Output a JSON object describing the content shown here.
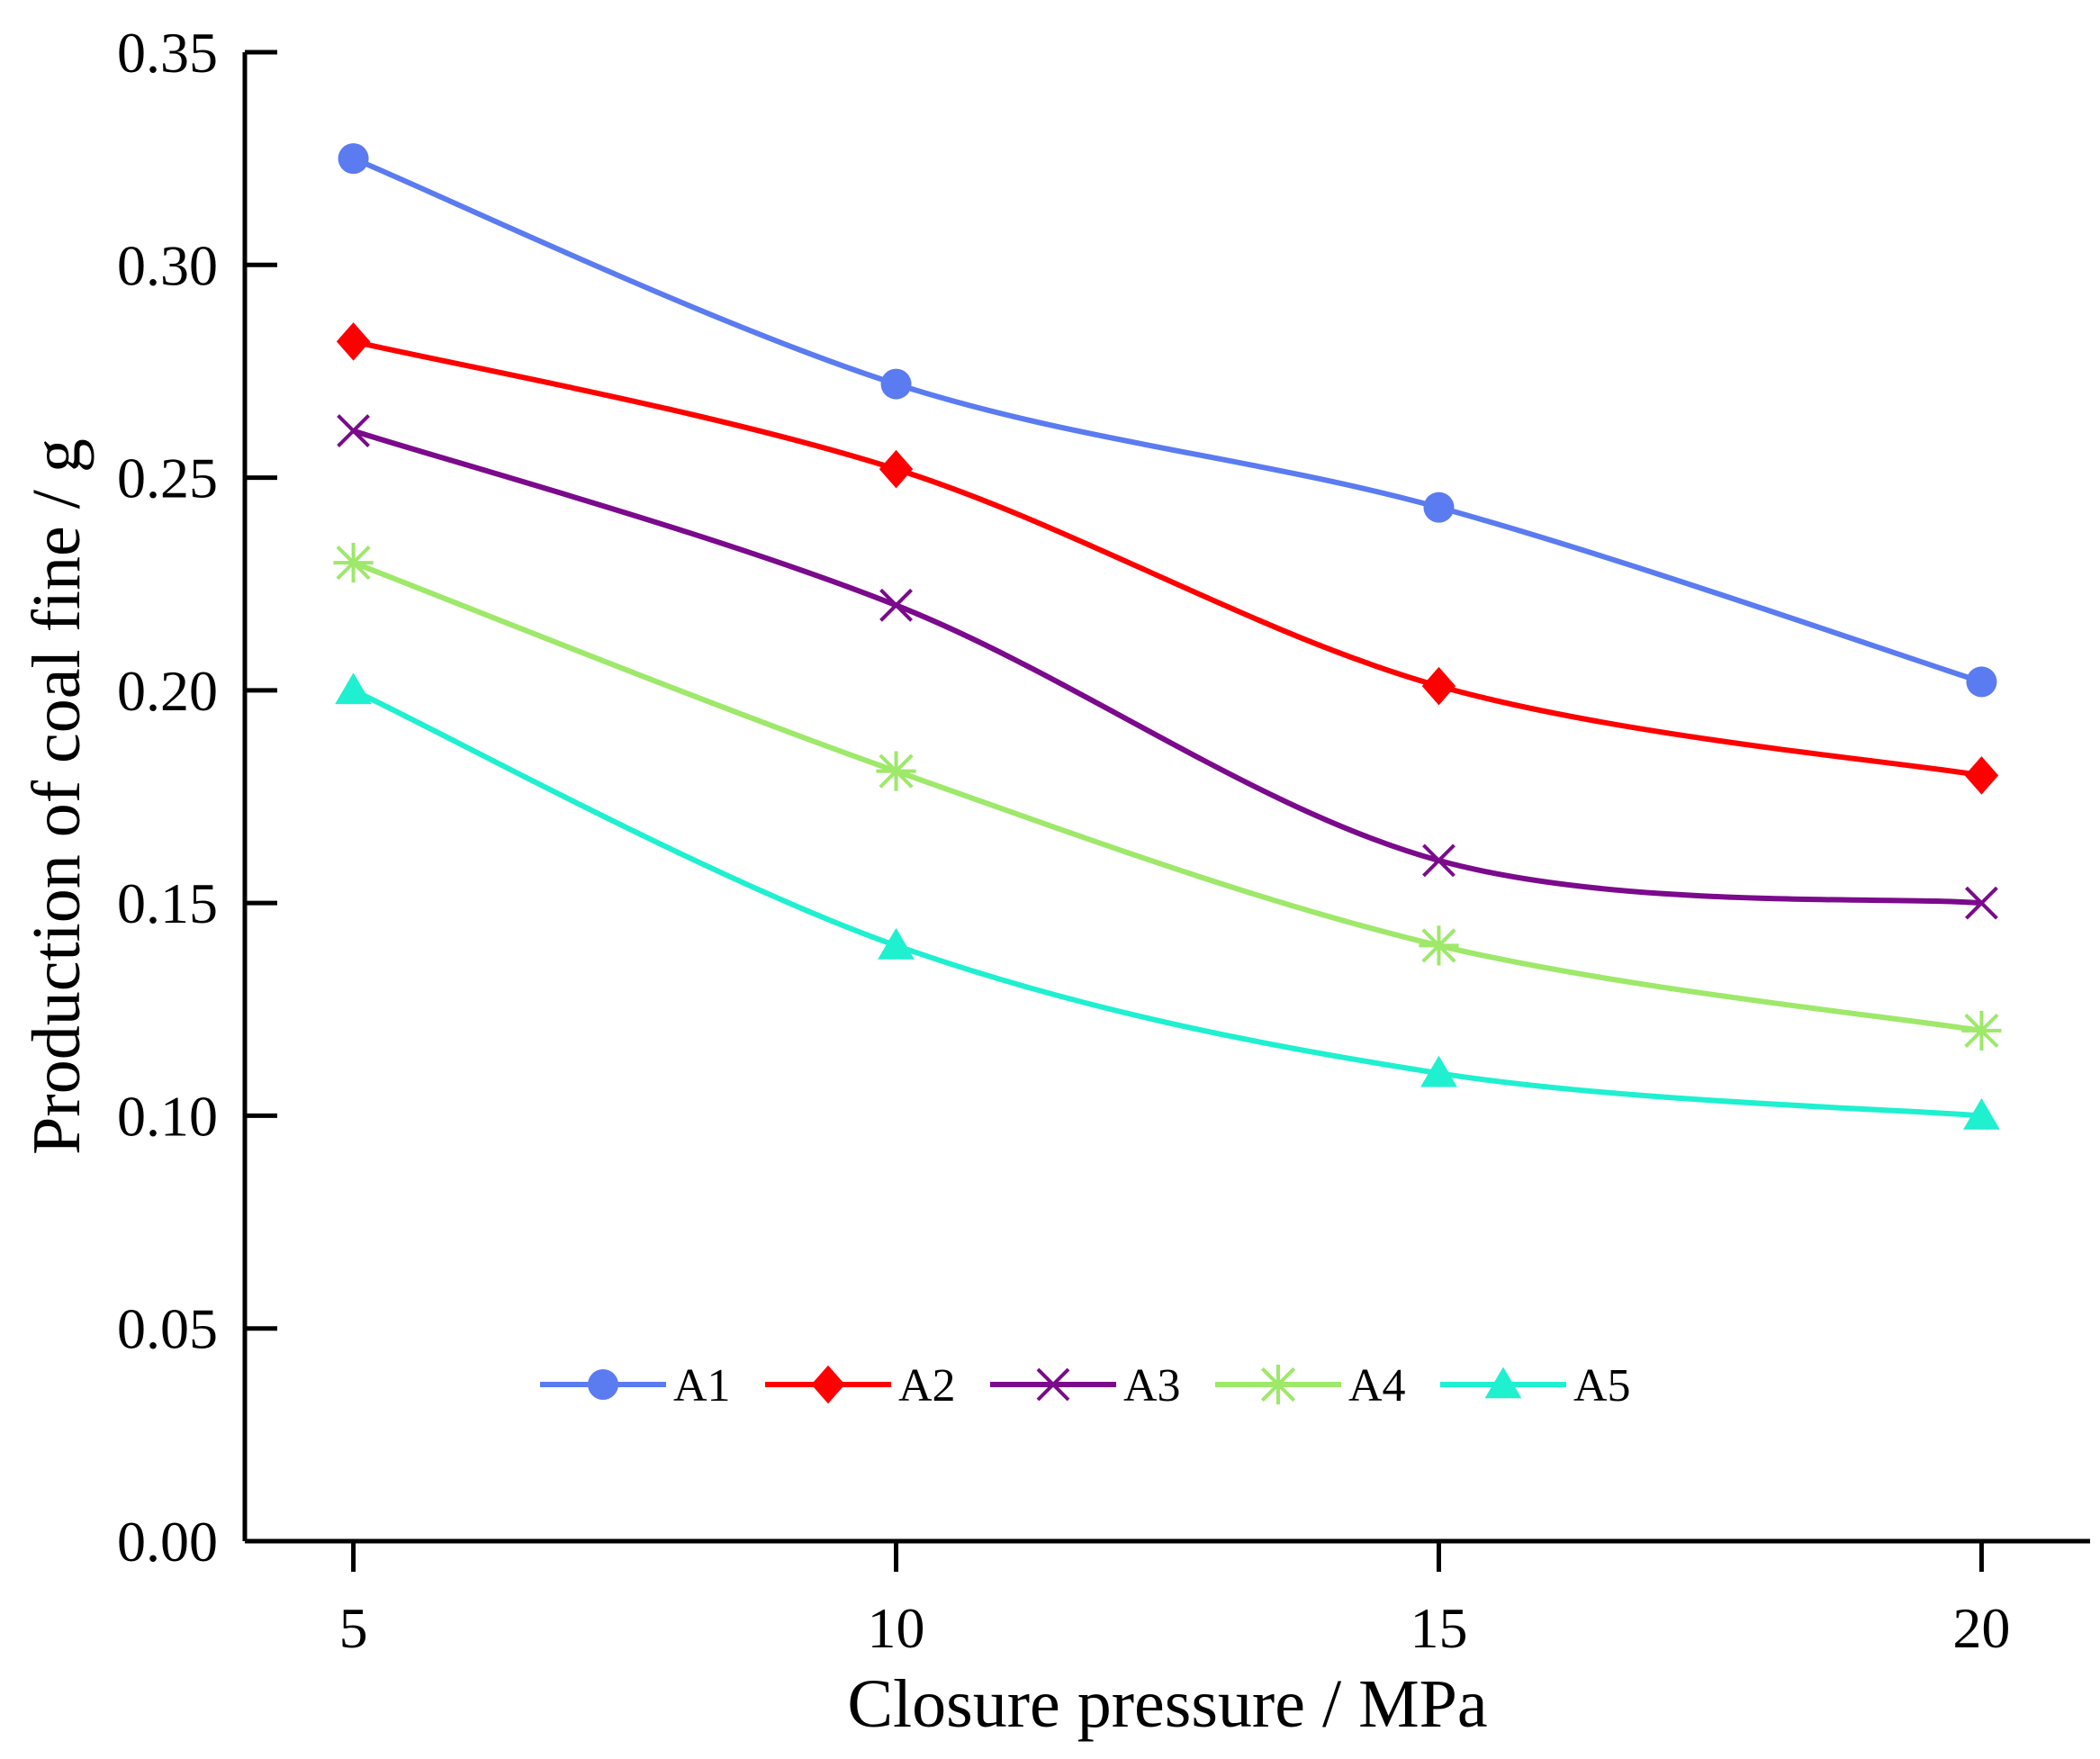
{
  "chart_data": {
    "type": "line",
    "title": "",
    "xlabel": "Closure pressure / MPa",
    "ylabel": "Production of coal fine / g",
    "x": [
      5,
      10,
      15,
      20
    ],
    "x_tick_labels": [
      "5",
      "10",
      "15",
      "20"
    ],
    "xlim": [
      4,
      21
    ],
    "ylim": [
      0,
      0.35
    ],
    "y_ticks": [
      0.0,
      0.05,
      0.1,
      0.15,
      0.2,
      0.25,
      0.3,
      0.35
    ],
    "y_tick_labels": [
      "0.00",
      "0.05",
      "0.10",
      "0.15",
      "0.20",
      "0.25",
      "0.30",
      "0.35"
    ],
    "grid": false,
    "legend_position": "bottom-center",
    "series": [
      {
        "name": "A1",
        "values": [
          0.325,
          0.272,
          0.243,
          0.202
        ],
        "color": "#5B7BF0",
        "marker": "circle"
      },
      {
        "name": "A2",
        "values": [
          0.282,
          0.252,
          0.201,
          0.18
        ],
        "color": "#FF0000",
        "marker": "diamond"
      },
      {
        "name": "A3",
        "values": [
          0.261,
          0.22,
          0.16,
          0.15
        ],
        "color": "#7B0A8C",
        "marker": "x"
      },
      {
        "name": "A4",
        "values": [
          0.23,
          0.181,
          0.14,
          0.12
        ],
        "color": "#9EE86A",
        "marker": "star"
      },
      {
        "name": "A5",
        "values": [
          0.2,
          0.14,
          0.11,
          0.1
        ],
        "color": "#1EF0D0",
        "marker": "triangle"
      }
    ]
  }
}
